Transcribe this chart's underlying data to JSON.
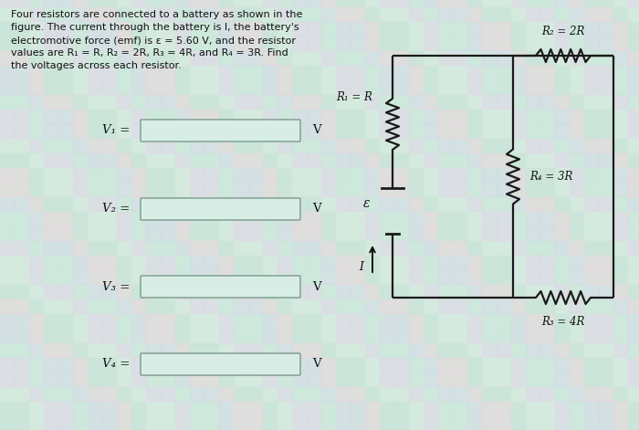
{
  "title_text": "Four resistors are connected to a battery as shown in the\nfigure. The current through the battery is I, the battery's\nelectromotive force (emf) is ε = 5.60 V, and the resistor\nvalues are R₁ = R, R₂ = 2R, R₃ = 4R, and R₄ = 3R. Find\nthe voltages across each resistor.",
  "voltage_labels": [
    "V₁ =",
    "V₂ =",
    "V₃ =",
    "V₄ ="
  ],
  "unit": "V",
  "bg_color": "#d2e8de",
  "box_facecolor": "#d8ede6",
  "box_edge_color": "#7a9a8a",
  "circuit_line_color": "#1a1a1a",
  "text_color": "#111111",
  "resistor_labels": [
    "R₁ = R",
    "R₂ = 2R",
    "R₄ = 3R",
    "R₃ = 4R"
  ],
  "emf_label": "ε",
  "current_label": "I",
  "tile_colors": [
    "#c8e4d8",
    "#d8ecdf",
    "#e0d8e8",
    "#cce8dc",
    "#d4dce8",
    "#e8d8dc"
  ],
  "tile_size": 0.16
}
